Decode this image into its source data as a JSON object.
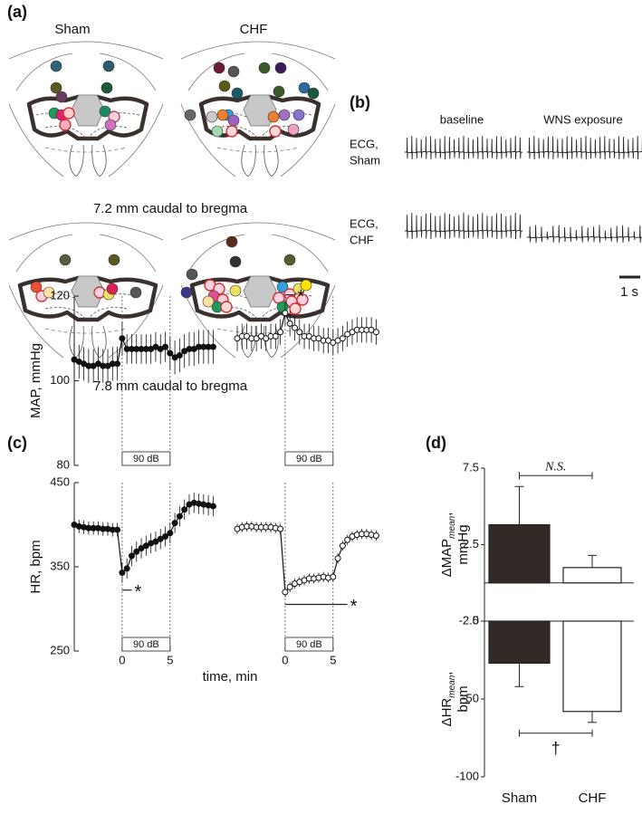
{
  "panel_labels": {
    "a": "(a)",
    "b": "(b)",
    "c": "(c)",
    "d": "(d)"
  },
  "brain": {
    "groups": [
      "Sham",
      "CHF"
    ],
    "levels": [
      "7.2 mm caudal to bregma",
      "7.8 mm caudal to bregma"
    ]
  },
  "ecg": {
    "conditions": [
      "baseline",
      "WNS exposure"
    ],
    "rows": [
      [
        "ECG,",
        "Sham"
      ],
      [
        "ECG,",
        "CHF"
      ]
    ],
    "scale_bar": "1 s"
  },
  "chart_data": [
    {
      "type": "line",
      "title": "Sham",
      "ylabel": "MAP, mmHg",
      "xlim": [
        -5,
        10.5
      ],
      "ylim": [
        80,
        120
      ],
      "yticks": [
        80,
        100,
        120
      ],
      "stimulus": {
        "label": "90 dB",
        "start": 0,
        "end": 5
      },
      "marker_fill": "#111",
      "color": "#111",
      "x": [
        -5,
        -4.5,
        -4,
        -3.5,
        -3,
        -2.5,
        -2,
        -1.5,
        -1,
        -0.5,
        0,
        0.5,
        1,
        1.5,
        2,
        2.5,
        3,
        3.5,
        4,
        4.5,
        5,
        5.5,
        6,
        6.5,
        7,
        7.5,
        8,
        8.5,
        9,
        9.5
      ],
      "values": [
        105,
        104.5,
        104,
        103.5,
        103.5,
        104,
        103.5,
        103.5,
        104,
        104,
        110,
        107.5,
        107.5,
        107.5,
        107.5,
        107.5,
        107.5,
        108,
        107.5,
        108,
        106.5,
        105.5,
        106,
        107,
        107.5,
        107.5,
        108,
        108,
        108,
        108
      ],
      "errors": [
        4,
        4,
        4,
        4,
        4,
        4,
        4,
        4,
        4,
        4,
        4,
        3.5,
        3.5,
        3.5,
        3.5,
        3.5,
        3.5,
        3.5,
        3.5,
        3.5,
        4,
        4,
        4,
        4,
        4,
        4,
        4,
        4,
        4,
        4
      ]
    },
    {
      "type": "line",
      "title": "CHF",
      "xlim": [
        -5,
        10.5
      ],
      "ylim": [
        80,
        120
      ],
      "yticks": [
        80,
        100,
        120
      ],
      "stimulus": {
        "label": "90 dB",
        "start": 0,
        "end": 5
      },
      "marker_fill": "#fff",
      "color": "#111",
      "x": [
        -5,
        -4.5,
        -4,
        -3.5,
        -3,
        -2.5,
        -2,
        -1.5,
        -1,
        -0.5,
        0,
        0.5,
        1,
        1.5,
        2,
        2.5,
        3,
        3.5,
        4,
        4.5,
        5,
        5.5,
        6,
        6.5,
        7,
        7.5,
        8,
        8.5,
        9,
        9.5
      ],
      "values": [
        110,
        110.5,
        110.5,
        110,
        110,
        110.5,
        110,
        110.5,
        110.5,
        111.5,
        116,
        113.5,
        112.5,
        111.5,
        110.5,
        110.5,
        110,
        110,
        109.5,
        109.5,
        109,
        109.5,
        110,
        111,
        111.5,
        112,
        112,
        112,
        112,
        111.5
      ],
      "errors": [
        3,
        3,
        3,
        3,
        3,
        3,
        3,
        3,
        3,
        3,
        3,
        3,
        3,
        3,
        3,
        3,
        3,
        3,
        3,
        3,
        3,
        3,
        3,
        3,
        3,
        3,
        3,
        3,
        3,
        3
      ],
      "annotations": [
        {
          "text": "*",
          "from": 0,
          "to": 1
        }
      ]
    },
    {
      "type": "line",
      "ylabel": "HR, bpm",
      "xlabel": "time, min",
      "xlim": [
        -5,
        10.5
      ],
      "ylim": [
        250,
        450
      ],
      "yticks": [
        250,
        350,
        450
      ],
      "xticks": [
        0,
        5
      ],
      "stimulus": {
        "label": "90 dB",
        "start": 0,
        "end": 5
      },
      "marker_fill": "#111",
      "color": "#111",
      "x": [
        -5,
        -4.5,
        -4,
        -3.5,
        -3,
        -2.5,
        -2,
        -1.5,
        -1,
        -0.5,
        0,
        0.5,
        1,
        1.5,
        2,
        2.5,
        3,
        3.5,
        4,
        4.5,
        5,
        5.5,
        6,
        6.5,
        7,
        7.5,
        8,
        8.5,
        9,
        9.5
      ],
      "values": [
        400,
        398,
        397,
        396,
        396,
        396,
        395,
        395,
        394,
        394,
        343,
        348,
        363,
        368,
        372,
        375,
        378,
        380,
        383,
        386,
        390,
        402,
        410,
        418,
        424,
        426,
        425,
        424,
        423,
        422
      ],
      "errors": [
        8,
        8,
        8,
        8,
        8,
        8,
        8,
        8,
        8,
        8,
        12,
        12,
        12,
        12,
        12,
        12,
        12,
        12,
        12,
        12,
        12,
        12,
        12,
        12,
        12,
        12,
        12,
        12,
        12,
        12
      ],
      "annotations": [
        {
          "text": "*",
          "from": 0,
          "to": 1
        }
      ]
    },
    {
      "type": "line",
      "xlim": [
        -5,
        10.5
      ],
      "ylim": [
        250,
        450
      ],
      "yticks": [
        250,
        350,
        450
      ],
      "xticks": [
        0,
        5
      ],
      "stimulus": {
        "label": "90 dB",
        "start": 0,
        "end": 5
      },
      "marker_fill": "#fff",
      "color": "#111",
      "x": [
        -5,
        -4.5,
        -4,
        -3.5,
        -3,
        -2.5,
        -2,
        -1.5,
        -1,
        -0.5,
        0,
        0.5,
        1,
        1.5,
        2,
        2.5,
        3,
        3.5,
        4,
        4.5,
        5,
        5.5,
        6,
        6.5,
        7,
        7.5,
        8,
        8.5,
        9,
        9.5
      ],
      "values": [
        395,
        397,
        398,
        398,
        397,
        397,
        397,
        397,
        396,
        395,
        320,
        326,
        330,
        332,
        334,
        336,
        336,
        337,
        338,
        337,
        338,
        360,
        375,
        382,
        386,
        388,
        389,
        389,
        388,
        387
      ],
      "errors": [
        6,
        6,
        6,
        6,
        6,
        6,
        6,
        6,
        6,
        6,
        6,
        6,
        6,
        6,
        6,
        6,
        6,
        6,
        6,
        6,
        6,
        6,
        6,
        6,
        6,
        6,
        6,
        6,
        6,
        6
      ],
      "annotations": [
        {
          "text": "*",
          "from": 0,
          "to": 6.5
        }
      ]
    },
    {
      "type": "bar",
      "ylabel": {
        "name": "ΔMAP",
        "subscript": "mean",
        "suffix": ",",
        "unit": "mmHg"
      },
      "ylim": [
        -2.5,
        7.5
      ],
      "yticks": [
        -2.5,
        2.5,
        7.5
      ],
      "values": [
        3.8,
        1
      ],
      "errors": [
        2.5,
        0.8
      ],
      "colors": [
        "#332a27",
        "#ffffff"
      ],
      "annotation": "N.S."
    },
    {
      "type": "bar",
      "ylabel": {
        "name": "ΔHR",
        "subscript": "mean",
        "suffix": ",",
        "unit": "bpm"
      },
      "ylim": [
        -100,
        0
      ],
      "yticks": [
        -100,
        -50,
        0
      ],
      "categories": [
        "Sham",
        "CHF"
      ],
      "values": [
        -27,
        -58
      ],
      "errors": [
        15,
        7
      ],
      "colors": [
        "#332a27",
        "#ffffff"
      ],
      "annotation": "†"
    }
  ]
}
